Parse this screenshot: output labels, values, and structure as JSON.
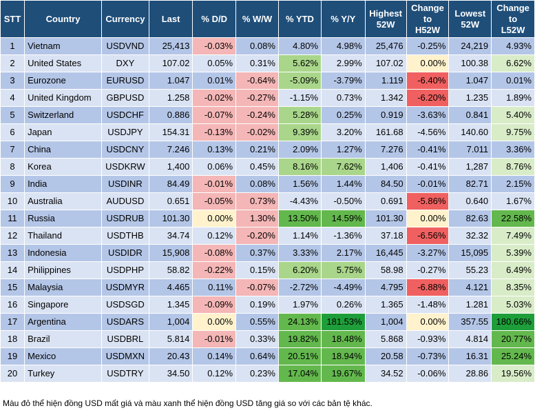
{
  "columns": [
    "STT",
    "Country",
    "Currency",
    "Last",
    "% D/D",
    "% W/W",
    "% YTD",
    "% Y/Y",
    "Highest 52W",
    "Change to H52W",
    "Lowest 52W",
    "Change to L52W"
  ],
  "column_lines": [
    [
      "STT"
    ],
    [
      "Country"
    ],
    [
      "Currency"
    ],
    [
      "Last"
    ],
    [
      "% D/D"
    ],
    [
      "% W/W"
    ],
    [
      "% YTD"
    ],
    [
      "% Y/Y"
    ],
    [
      "Highest",
      "52W"
    ],
    [
      "Change",
      "to",
      "H52W"
    ],
    [
      "Lowest",
      "52W"
    ],
    [
      "Change",
      "to",
      "L52W"
    ]
  ],
  "rows": [
    [
      "1",
      "Vietnam",
      "USDVND",
      "25,413",
      "-0.03%",
      "0.08%",
      "4.80%",
      "4.98%",
      "25,476",
      "-0.25%",
      "24,219",
      "4.93%"
    ],
    [
      "2",
      "United States",
      "DXY",
      "107.02",
      "0.05%",
      "0.31%",
      "5.62%",
      "2.99%",
      "107.02",
      "0.00%",
      "100.38",
      "6.62%"
    ],
    [
      "3",
      "Eurozone",
      "EURUSD",
      "1.047",
      "0.01%",
      "-0.64%",
      "-5.09%",
      "-3.79%",
      "1.119",
      "-6.40%",
      "1.047",
      "0.01%"
    ],
    [
      "4",
      "United Kingdom",
      "GBPUSD",
      "1.258",
      "-0.02%",
      "-0.27%",
      "-1.15%",
      "0.73%",
      "1.342",
      "-6.20%",
      "1.235",
      "1.89%"
    ],
    [
      "5",
      "Switzerland",
      "USDCHF",
      "0.886",
      "-0.07%",
      "-0.24%",
      "5.28%",
      "0.25%",
      "0.919",
      "-3.63%",
      "0.841",
      "5.40%"
    ],
    [
      "6",
      "Japan",
      "USDJPY",
      "154.31",
      "-0.13%",
      "-0.02%",
      "9.39%",
      "3.20%",
      "161.68",
      "-4.56%",
      "140.60",
      "9.75%"
    ],
    [
      "7",
      "China",
      "USDCNY",
      "7.246",
      "0.13%",
      "0.21%",
      "2.09%",
      "1.27%",
      "7.276",
      "-0.41%",
      "7.011",
      "3.36%"
    ],
    [
      "8",
      "Korea",
      "USDKRW",
      "1,400",
      "0.06%",
      "0.45%",
      "8.16%",
      "7.62%",
      "1,406",
      "-0.41%",
      "1,287",
      "8.76%"
    ],
    [
      "9",
      "India",
      "USDINR",
      "84.49",
      "-0.01%",
      "0.08%",
      "1.56%",
      "1.44%",
      "84.50",
      "-0.01%",
      "82.71",
      "2.15%"
    ],
    [
      "10",
      "Australia",
      "AUDUSD",
      "0.651",
      "-0.05%",
      "0.73%",
      "-4.43%",
      "-0.50%",
      "0.691",
      "-5.86%",
      "0.640",
      "1.67%"
    ],
    [
      "11",
      "Russia",
      "USDRUB",
      "101.30",
      "0.00%",
      "1.30%",
      "13.50%",
      "14.59%",
      "101.30",
      "0.00%",
      "82.63",
      "22.58%"
    ],
    [
      "12",
      "Thailand",
      "USDTHB",
      "34.74",
      "0.12%",
      "-0.20%",
      "1.14%",
      "-1.36%",
      "37.18",
      "-6.56%",
      "32.32",
      "7.49%"
    ],
    [
      "13",
      "Indonesia",
      "USDIDR",
      "15,908",
      "-0.08%",
      "0.37%",
      "3.33%",
      "2.17%",
      "16,445",
      "-3.27%",
      "15,095",
      "5.39%"
    ],
    [
      "14",
      "Philippines",
      "USDPHP",
      "58.82",
      "-0.22%",
      "0.15%",
      "6.20%",
      "5.75%",
      "58.98",
      "-0.27%",
      "55.23",
      "6.49%"
    ],
    [
      "15",
      "Malaysia",
      "USDMYR",
      "4.465",
      "0.11%",
      "-0.07%",
      "-2.72%",
      "-4.49%",
      "4.795",
      "-6.88%",
      "4.121",
      "8.35%"
    ],
    [
      "16",
      "Singapore",
      "USDSGD",
      "1.345",
      "-0.09%",
      "0.19%",
      "1.97%",
      "0.26%",
      "1.365",
      "-1.48%",
      "1.281",
      "5.03%"
    ],
    [
      "17",
      "Argentina",
      "USDARS",
      "1,004",
      "0.00%",
      "0.55%",
      "24.13%",
      "181.53%",
      "1,004",
      "0.00%",
      "357.55",
      "180.66%"
    ],
    [
      "18",
      "Brazil",
      "USDBRL",
      "5.814",
      "-0.01%",
      "0.33%",
      "19.82%",
      "18.48%",
      "5.868",
      "-0.93%",
      "4.814",
      "20.77%"
    ],
    [
      "19",
      "Mexico",
      "USDMXN",
      "20.43",
      "0.14%",
      "0.64%",
      "20.51%",
      "18.94%",
      "20.58",
      "-0.73%",
      "16.31",
      "25.24%"
    ],
    [
      "20",
      "Turkey",
      "USDTRY",
      "34.50",
      "0.12%",
      "0.23%",
      "17.04%",
      "19.67%",
      "34.52",
      "-0.06%",
      "28.86",
      "19.56%"
    ]
  ],
  "colors": {
    "header_bg": "#1f4e79",
    "row_odd": "#b4c6e7",
    "row_even": "#dae3f3",
    "neg_light": "#f4b6b6",
    "neg_strong": "#f06060",
    "pos_light": "#d8ecc8",
    "pos_mid": "#a9d68a",
    "pos_strong": "#63b84d",
    "pos_max": "#1e9e3a",
    "zero": "#fff2cc"
  },
  "footnote": "Màu đỏ thể hiện đồng USD mất giá và màu xanh thể hiện đồng USD tăng giá so với các bản tệ khác."
}
